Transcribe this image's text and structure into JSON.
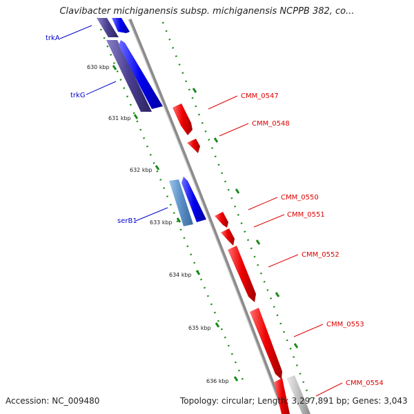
{
  "title": "Clavibacter michiganensis subsp. michiganensis NCPPB 382, co...",
  "footer": {
    "accession": "Accession: NC_009480",
    "summary": "Topology: circular; Length: 3,297,891 bp; Genes: 3,043"
  },
  "colors": {
    "backbone": "#8c8c8c",
    "forward_gene": "#0000ee",
    "dark_gene": "#4a3f8f",
    "light_blue_gene": "#5a8fc8",
    "reverse_gene": "#ee0000",
    "grey_gene": "#c0c0c0",
    "tick_dots": "#1a8a1a",
    "blue_label": "#0000cc",
    "red_label": "#dd0000"
  },
  "kbp_labels": [
    "630 kbp",
    "631 kbp",
    "632 kbp",
    "633 kbp",
    "634 kbp",
    "635 kbp",
    "636 kbp"
  ],
  "blue_genes": [
    {
      "id": "trkA",
      "label": "trkA"
    },
    {
      "id": "trkG",
      "label": "trkG"
    },
    {
      "id": "serB1",
      "label": "serB1"
    }
  ],
  "red_genes": [
    {
      "id": "cmm-0547",
      "label": "CMM_0547"
    },
    {
      "id": "cmm-0548",
      "label": "CMM_0548"
    },
    {
      "id": "cmm-0550",
      "label": "CMM_0550"
    },
    {
      "id": "cmm-0551",
      "label": "CMM_0551"
    },
    {
      "id": "cmm-0552",
      "label": "CMM_0552"
    },
    {
      "id": "cmm-0553",
      "label": "CMM_0553"
    },
    {
      "id": "cmm-0554",
      "label": "CMM_0554"
    }
  ]
}
